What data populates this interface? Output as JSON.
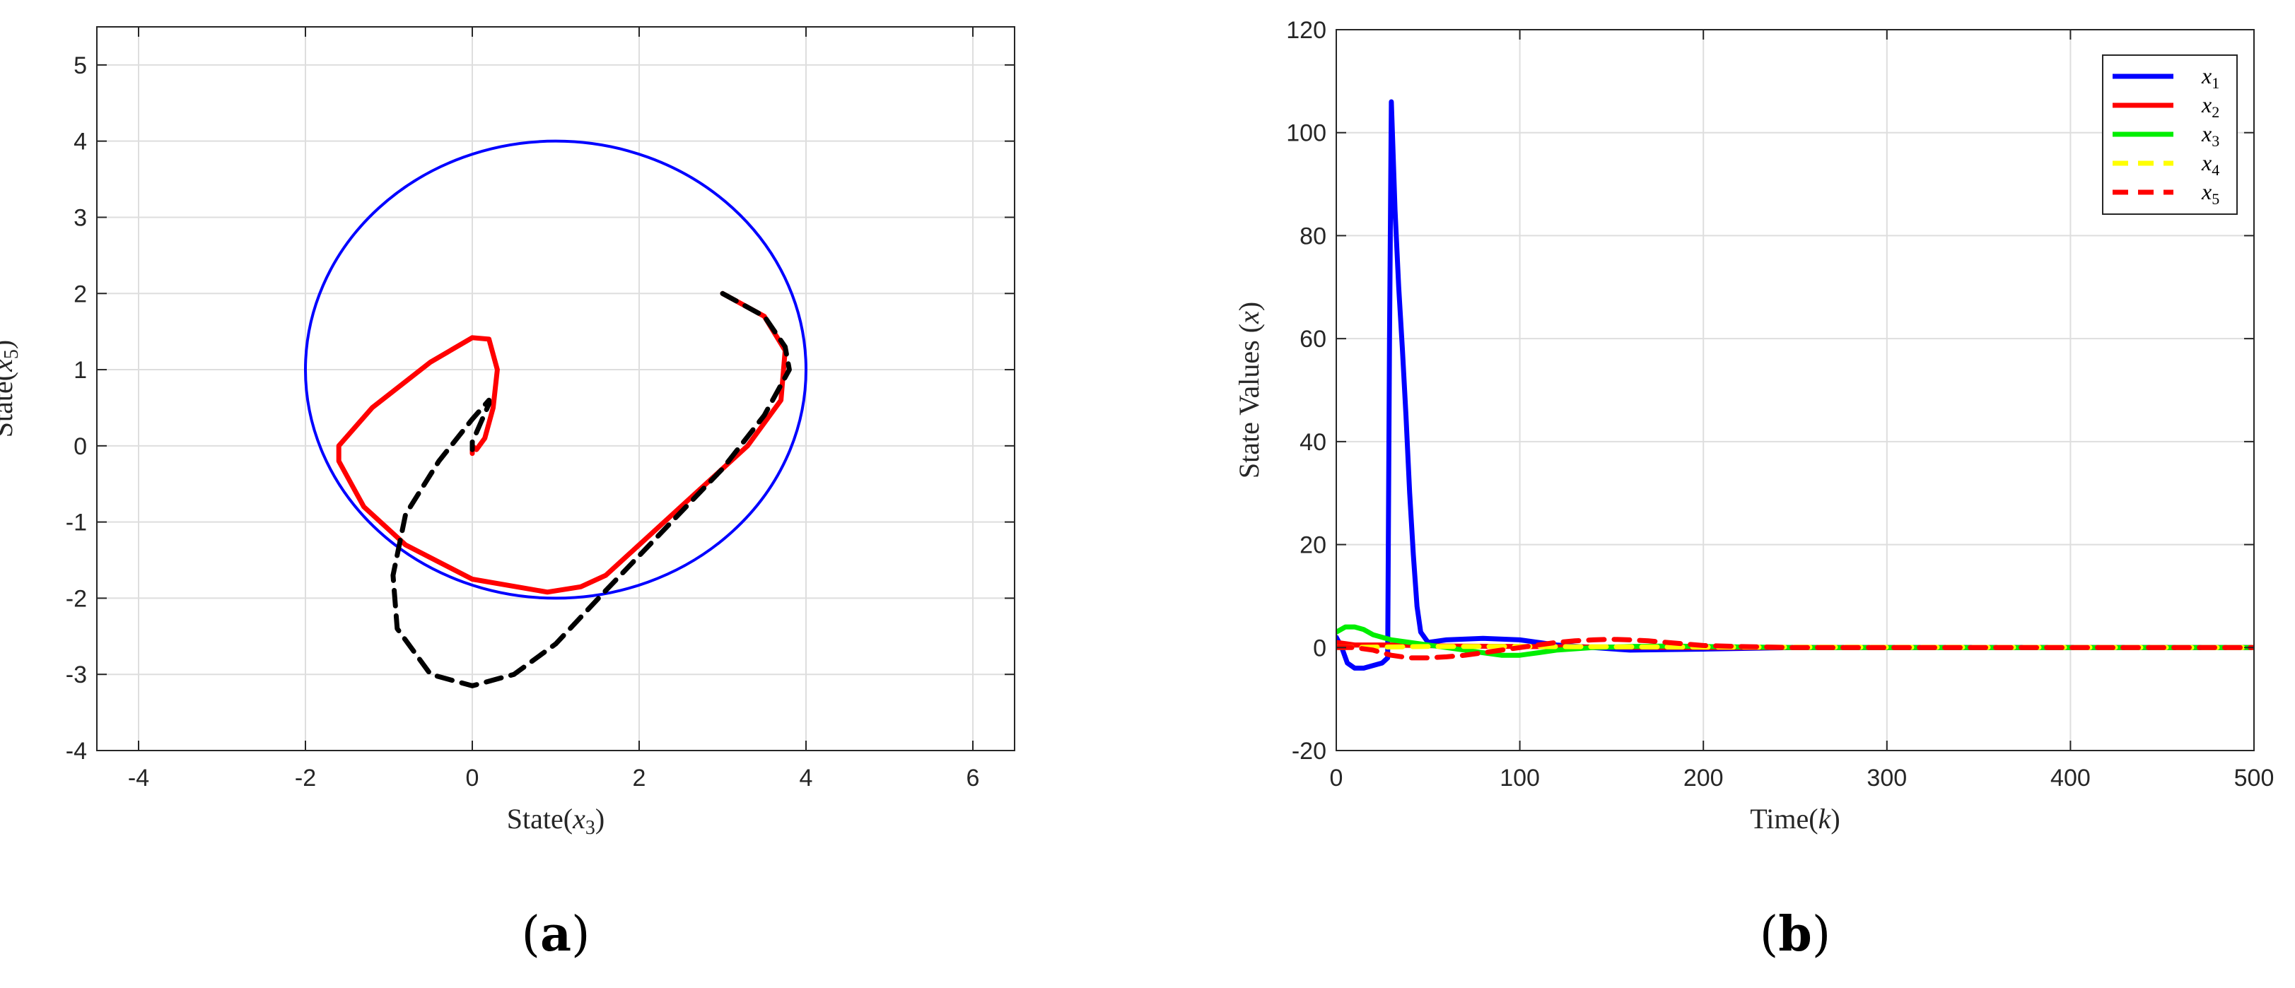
{
  "chart_data": [
    {
      "type": "line",
      "panel_label": "(a)",
      "xlabel": "State(x3)",
      "ylabel": "State(x5)",
      "xlim": [
        -4.5,
        6.5
      ],
      "ylim": [
        -4,
        5.5
      ],
      "xticks": [
        -4,
        -2,
        0,
        2,
        4,
        6
      ],
      "yticks": [
        -4,
        -3,
        -2,
        -1,
        0,
        1,
        2,
        3,
        4,
        5
      ],
      "grid": true,
      "series": [
        {
          "color": "#0000ff",
          "style": "solid",
          "shape": "circle",
          "center": [
            1,
            1
          ],
          "radius": 3
        },
        {
          "color": "#ff0000",
          "style": "solid",
          "x": [
            3.0,
            3.5,
            3.75,
            3.7,
            3.3,
            2.7,
            2.0,
            1.6,
            1.3,
            0.9,
            0.0,
            -0.8,
            -1.3,
            -1.6,
            -1.6,
            -1.2,
            -0.5,
            0.0,
            0.2,
            0.3,
            0.25,
            0.15,
            0.05,
            0.0,
            0.0
          ],
          "y": [
            2.0,
            1.7,
            1.25,
            0.6,
            0.0,
            -0.6,
            -1.3,
            -1.7,
            -1.85,
            -1.92,
            -1.75,
            -1.3,
            -0.8,
            -0.2,
            0.0,
            0.5,
            1.1,
            1.42,
            1.4,
            1.0,
            0.5,
            0.1,
            -0.05,
            0.0,
            -0.1
          ]
        },
        {
          "color": "#000000",
          "style": "dashed",
          "x": [
            3.0,
            3.5,
            3.75,
            3.8,
            3.5,
            3.0,
            2.3,
            1.6,
            1.0,
            0.5,
            0.0,
            -0.5,
            -0.9,
            -0.95,
            -0.8,
            -0.4,
            0.0,
            0.2,
            0.2,
            0.1,
            0.0,
            0.0
          ],
          "y": [
            2.0,
            1.7,
            1.3,
            1.0,
            0.4,
            -0.3,
            -1.1,
            -1.9,
            -2.6,
            -3.0,
            -3.15,
            -3.0,
            -2.4,
            -1.7,
            -0.9,
            -0.2,
            0.35,
            0.6,
            0.55,
            0.3,
            0.05,
            -0.05
          ]
        }
      ]
    },
    {
      "type": "line",
      "panel_label": "(b)",
      "xlabel": "Time(k)",
      "ylabel": "State Values (x)",
      "xlim": [
        0,
        500
      ],
      "ylim": [
        -20,
        120
      ],
      "xticks": [
        0,
        100,
        200,
        300,
        400,
        500
      ],
      "yticks": [
        -20,
        0,
        20,
        40,
        60,
        80,
        100,
        120
      ],
      "grid": true,
      "legend_placement": "top-right",
      "series": [
        {
          "name": "x1",
          "color": "#0000ff",
          "style": "solid",
          "x": [
            0,
            3,
            6,
            10,
            15,
            20,
            25,
            28,
            29,
            30,
            32,
            34,
            36,
            38,
            40,
            42,
            44,
            46,
            50,
            60,
            80,
            100,
            120,
            140,
            160,
            200,
            250,
            500
          ],
          "y": [
            2,
            0,
            -3,
            -4,
            -4,
            -3.5,
            -3,
            -2,
            60,
            106,
            85,
            70,
            58,
            45,
            30,
            18,
            8,
            3,
            1,
            1.5,
            1.8,
            1.5,
            0.5,
            0,
            -0.5,
            -0.3,
            0,
            0
          ]
        },
        {
          "name": "x2",
          "color": "#ff0000",
          "style": "solid",
          "x": [
            0,
            10,
            30,
            60,
            100,
            150,
            200,
            500
          ],
          "y": [
            1,
            0.5,
            0.5,
            0.3,
            0.2,
            0.1,
            0,
            0
          ]
        },
        {
          "name": "x3",
          "color": "#00ee00",
          "style": "solid",
          "x": [
            0,
            5,
            10,
            15,
            20,
            30,
            40,
            50,
            60,
            70,
            80,
            90,
            100,
            110,
            120,
            140,
            160,
            180,
            200,
            250,
            300,
            500
          ],
          "y": [
            3,
            4,
            4,
            3.5,
            2.5,
            1.5,
            1,
            0.5,
            0,
            -0.5,
            -1,
            -1.5,
            -1.5,
            -1,
            -0.5,
            0,
            0.2,
            0.3,
            0.2,
            0,
            0,
            0
          ]
        },
        {
          "name": "x4",
          "color": "#ffff00",
          "style": "dashed",
          "x": [
            0,
            50,
            100,
            200,
            500
          ],
          "y": [
            0,
            0.2,
            0.2,
            0.1,
            0
          ]
        },
        {
          "name": "x5",
          "color": "#ff0000",
          "style": "dashed",
          "x": [
            0,
            10,
            20,
            30,
            40,
            50,
            60,
            70,
            80,
            90,
            100,
            110,
            120,
            130,
            140,
            150,
            160,
            170,
            180,
            190,
            200,
            220,
            250,
            300,
            500
          ],
          "y": [
            0,
            0,
            -0.5,
            -1.5,
            -2,
            -2,
            -1.8,
            -1.5,
            -1,
            -0.5,
            0,
            0.5,
            1,
            1.3,
            1.5,
            1.6,
            1.5,
            1.3,
            1,
            0.7,
            0.4,
            0.2,
            0,
            0,
            0
          ]
        }
      ]
    }
  ]
}
